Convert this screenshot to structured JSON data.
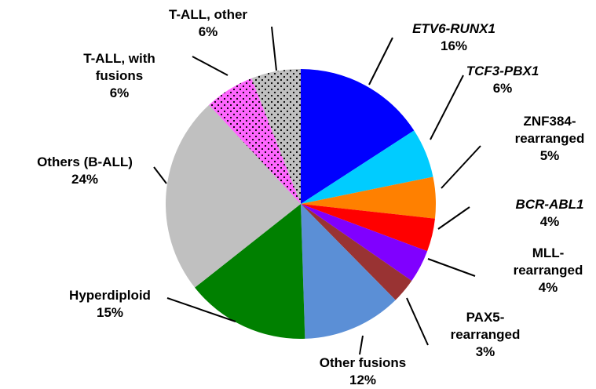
{
  "chart_data": {
    "type": "pie",
    "categories": [
      "ETV6-RUNX1",
      "TCF3-PBX1",
      "ZNF384-rearranged",
      "BCR-ABL1",
      "MLL-rearranged",
      "PAX5-rearranged",
      "Other fusions",
      "Hyperdiploid",
      "Others (B-ALL)",
      "T-ALL, with fusions",
      "T-ALL, other"
    ],
    "values": [
      16,
      6,
      5,
      4,
      4,
      3,
      12,
      15,
      24,
      6,
      6
    ],
    "value_labels": [
      "16%",
      "6%",
      "5%",
      "4%",
      "4%",
      "3%",
      "12%",
      "15%",
      "24%",
      "6%",
      "6%"
    ],
    "colors": [
      "#0000ff",
      "#00ccff",
      "#ff8000",
      "#ff0000",
      "#8000ff",
      "#993333",
      "#5b8fd6",
      "#008000",
      "#c0c0c0",
      "#ff66ff",
      "#c0c0c0"
    ],
    "patterns": [
      null,
      null,
      null,
      null,
      null,
      null,
      null,
      null,
      null,
      "dots",
      "dots"
    ],
    "italic": [
      true,
      true,
      false,
      true,
      false,
      false,
      false,
      false,
      false,
      false,
      false
    ]
  }
}
